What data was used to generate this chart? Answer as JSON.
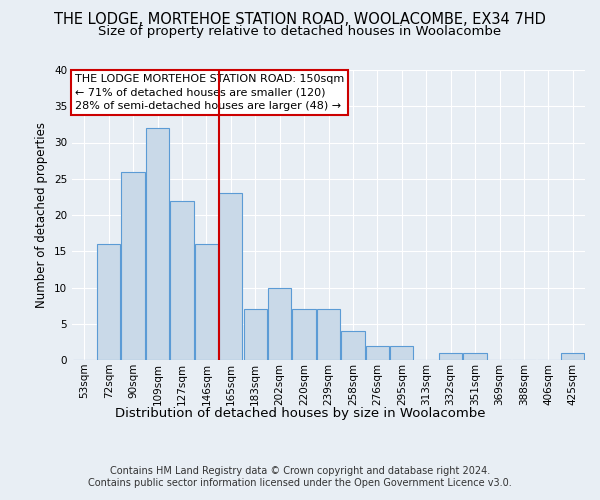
{
  "title": "THE LODGE, MORTEHOE STATION ROAD, WOOLACOMBE, EX34 7HD",
  "subtitle": "Size of property relative to detached houses in Woolacombe",
  "xlabel": "Distribution of detached houses by size in Woolacombe",
  "ylabel": "Number of detached properties",
  "categories": [
    "53sqm",
    "72sqm",
    "90sqm",
    "109sqm",
    "127sqm",
    "146sqm",
    "165sqm",
    "183sqm",
    "202sqm",
    "220sqm",
    "239sqm",
    "258sqm",
    "276sqm",
    "295sqm",
    "313sqm",
    "332sqm",
    "351sqm",
    "369sqm",
    "388sqm",
    "406sqm",
    "425sqm"
  ],
  "values": [
    0,
    16,
    26,
    32,
    22,
    16,
    23,
    7,
    10,
    7,
    7,
    4,
    2,
    2,
    0,
    1,
    1,
    0,
    0,
    0,
    1
  ],
  "bar_color": "#c9d9e8",
  "bar_edge_color": "#5b9bd5",
  "vline_index": 6,
  "vline_color": "#cc0000",
  "annotation_text": "THE LODGE MORTEHOE STATION ROAD: 150sqm\n← 71% of detached houses are smaller (120)\n28% of semi-detached houses are larger (48) →",
  "annotation_box_color": "#ffffff",
  "annotation_box_edge": "#cc0000",
  "ylim": [
    0,
    40
  ],
  "yticks": [
    0,
    5,
    10,
    15,
    20,
    25,
    30,
    35,
    40
  ],
  "footer_line1": "Contains HM Land Registry data © Crown copyright and database right 2024.",
  "footer_line2": "Contains public sector information licensed under the Open Government Licence v3.0.",
  "background_color": "#e8eef4",
  "grid_color": "#ffffff",
  "title_fontsize": 10.5,
  "subtitle_fontsize": 9.5,
  "tick_fontsize": 7.5,
  "ylabel_fontsize": 8.5,
  "xlabel_fontsize": 9.5,
  "footer_fontsize": 7.0,
  "annotation_fontsize": 8.0
}
